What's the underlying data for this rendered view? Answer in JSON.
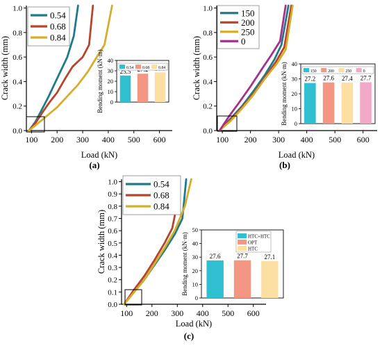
{
  "panel_labels": [
    "(a)",
    "(b)",
    "(c)"
  ],
  "chart_data": [
    {
      "type": "line",
      "xlabel": "Load (kN)",
      "ylabel": "Crack width (mm)",
      "xticks": [
        "100",
        "200",
        "300",
        "400",
        "500",
        "600"
      ],
      "yticks": [
        "0.0",
        "0.2",
        "0.4",
        "0.6",
        "0.8",
        "1.0"
      ],
      "xlim": [
        80,
        650
      ],
      "ylim": [
        0,
        1.02
      ],
      "legend_position": "top-left",
      "colors": [
        "#1f7a8c",
        "#b5452b",
        "#d4ae2c"
      ],
      "series": [
        {
          "name": "0.54",
          "x": [
            90,
            115,
            140,
            165,
            190,
            215,
            240,
            265,
            282
          ],
          "y": [
            0.0,
            0.07,
            0.17,
            0.27,
            0.38,
            0.49,
            0.6,
            0.77,
            1.02
          ]
        },
        {
          "name": "0.68",
          "x": [
            90,
            115,
            140,
            170,
            200,
            230,
            260,
            300,
            325,
            340
          ],
          "y": [
            0.0,
            0.06,
            0.14,
            0.23,
            0.31,
            0.42,
            0.52,
            0.6,
            0.7,
            1.02
          ]
        },
        {
          "name": "0.84",
          "x": [
            90,
            120,
            160,
            200,
            240,
            280,
            320,
            355,
            385,
            415
          ],
          "y": [
            0.0,
            0.05,
            0.12,
            0.19,
            0.28,
            0.37,
            0.48,
            0.6,
            0.7,
            1.02
          ]
        }
      ],
      "inset": {
        "type": "bar",
        "ylabel": "Bending moment (kN·m)",
        "yticks": [
          "0",
          "10",
          "20",
          "30",
          "40"
        ],
        "ylim": [
          0,
          40
        ],
        "categories": [
          "0.54",
          "0.68",
          "0.84"
        ],
        "values": [
          25.5,
          27.2,
          28.5
        ],
        "labels": [
          "25.5",
          "27.2",
          "28.5"
        ],
        "colors": [
          "#2fbfd0",
          "#f49684",
          "#fbdfa3"
        ]
      }
    },
    {
      "type": "line",
      "xlabel": "Load (kN)",
      "ylabel": "Crack width (mm)",
      "xticks": [
        "100",
        "200",
        "300",
        "400",
        "500",
        "600"
      ],
      "yticks": [
        "0.0",
        "0.2",
        "0.4",
        "0.6",
        "0.8",
        "1.0"
      ],
      "xlim": [
        80,
        650
      ],
      "ylim": [
        0,
        1.02
      ],
      "legend_position": "top-left",
      "colors": [
        "#1f7a8c",
        "#b5452b",
        "#d4ae2c",
        "#a8308a"
      ],
      "series": [
        {
          "name": "150",
          "x": [
            90,
            130,
            170,
            210,
            250,
            285,
            310,
            335
          ],
          "y": [
            0.0,
            0.1,
            0.2,
            0.32,
            0.45,
            0.58,
            0.7,
            1.02
          ]
        },
        {
          "name": "200",
          "x": [
            90,
            130,
            170,
            210,
            250,
            290,
            320,
            345
          ],
          "y": [
            0.0,
            0.09,
            0.19,
            0.3,
            0.43,
            0.56,
            0.68,
            1.02
          ]
        },
        {
          "name": "250",
          "x": [
            90,
            130,
            170,
            210,
            250,
            295,
            325,
            350
          ],
          "y": [
            0.0,
            0.08,
            0.18,
            0.29,
            0.42,
            0.55,
            0.66,
            1.02
          ]
        },
        {
          "name": "0",
          "x": [
            90,
            125,
            160,
            200,
            240,
            275,
            305,
            325
          ],
          "y": [
            0.0,
            0.12,
            0.23,
            0.36,
            0.5,
            0.62,
            0.73,
            1.02
          ]
        }
      ],
      "inset": {
        "type": "bar",
        "ylabel": "Bending moment (kN·m)",
        "yticks": [
          "0",
          "10",
          "20",
          "30",
          "40"
        ],
        "ylim": [
          0,
          40
        ],
        "categories": [
          "150",
          "200",
          "250",
          "0"
        ],
        "values": [
          27.2,
          27.6,
          27.4,
          27.7
        ],
        "labels": [
          "27.2",
          "27.6",
          "27.4",
          "27.7"
        ],
        "colors": [
          "#2fbfd0",
          "#f49684",
          "#fbdfa3",
          "#f3a8c8"
        ]
      }
    },
    {
      "type": "line",
      "xlabel": "Load (kN)",
      "ylabel": "Crack width (mm)",
      "xticks": [
        "100",
        "200",
        "300",
        "400",
        "500",
        "600"
      ],
      "yticks": [
        "0.0",
        "0.1",
        "0.2",
        "0.3",
        "0.4",
        "0.5",
        "0.6",
        "0.7",
        "0.8",
        "0.9",
        "1.0"
      ],
      "xlim": [
        80,
        650
      ],
      "ylim": [
        0,
        1.02
      ],
      "legend_position": "top-left",
      "colors": [
        "#1f7a8c",
        "#b5452b",
        "#d4ae2c"
      ],
      "series": [
        {
          "name": "0.54",
          "x": [
            90,
            130,
            170,
            210,
            250,
            290,
            320,
            335
          ],
          "y": [
            0.0,
            0.1,
            0.2,
            0.32,
            0.44,
            0.57,
            0.7,
            1.02
          ]
        },
        {
          "name": "0.68",
          "x": [
            90,
            130,
            170,
            210,
            250,
            280,
            290,
            300
          ],
          "y": [
            0.0,
            0.12,
            0.23,
            0.36,
            0.5,
            0.62,
            0.72,
            1.02
          ]
        },
        {
          "name": "0.84",
          "x": [
            90,
            130,
            170,
            210,
            250,
            290,
            330,
            355
          ],
          "y": [
            0.0,
            0.1,
            0.2,
            0.33,
            0.46,
            0.6,
            0.8,
            1.02
          ]
        }
      ],
      "inset": {
        "type": "bar",
        "ylabel": "Bending moment (kN·m)",
        "yticks": [
          "0",
          "10",
          "20",
          "30",
          "40",
          "50"
        ],
        "ylim": [
          0,
          50
        ],
        "categories": [
          "HTC+HTC",
          "OPT",
          "HTC"
        ],
        "values": [
          27.6,
          27.7,
          27.1
        ],
        "labels": [
          "27.6",
          "27.7",
          "27.1"
        ],
        "colors": [
          "#2fbfd0",
          "#f49684",
          "#fbdfa3"
        ]
      }
    }
  ]
}
